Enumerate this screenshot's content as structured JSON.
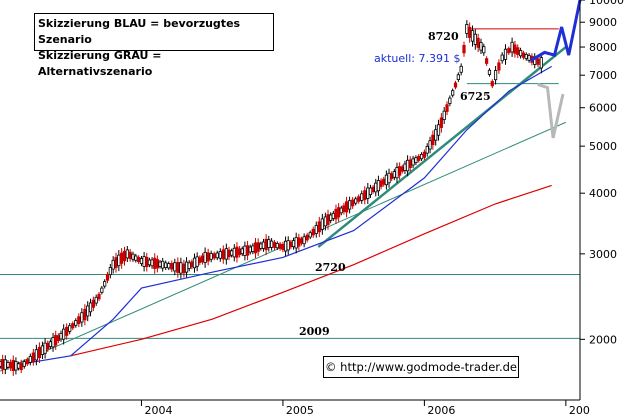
{
  "legend": {
    "line1": "Skizzierung BLAU = bevorzugtes Szenario",
    "line2": "Skizzierung GRAU = Alternativszenario"
  },
  "credit": "© http://www.godmode-trader.de",
  "colors": {
    "price": "#000000",
    "down_candle": "#cc0000",
    "ma_red": "#dd0000",
    "ma_blue": "#1e2fd6",
    "trend_green": "#2e8b7a",
    "scenario_blue": "#1e2fd6",
    "scenario_gray": "#b8b8b8",
    "resistance_red": "#cc0000"
  },
  "chart_data": {
    "type": "candlestick",
    "y_scale": "log",
    "ylim": [
      1500,
      10000
    ],
    "y_ticks": [
      2000,
      3000,
      4000,
      5000,
      6000,
      7000,
      8000,
      9000,
      10000
    ],
    "y_tick_labels": [
      "2000",
      "3000",
      "4000",
      "5000",
      "6000",
      "7000",
      "8000",
      "9000",
      "10000"
    ],
    "x_tick_labels": [
      "2004",
      "2005",
      "2006",
      "200"
    ],
    "price_points": [
      {
        "t": 2003.0,
        "v": 1780
      },
      {
        "t": 2003.15,
        "v": 1760
      },
      {
        "t": 2003.3,
        "v": 1900
      },
      {
        "t": 2003.45,
        "v": 2050
      },
      {
        "t": 2003.6,
        "v": 2250
      },
      {
        "t": 2003.7,
        "v": 2450
      },
      {
        "t": 2003.8,
        "v": 2850
      },
      {
        "t": 2003.9,
        "v": 3000
      },
      {
        "t": 2004.0,
        "v": 2900
      },
      {
        "t": 2004.15,
        "v": 2850
      },
      {
        "t": 2004.3,
        "v": 2800
      },
      {
        "t": 2004.45,
        "v": 2950
      },
      {
        "t": 2004.6,
        "v": 3000
      },
      {
        "t": 2004.75,
        "v": 3050
      },
      {
        "t": 2004.9,
        "v": 3150
      },
      {
        "t": 2005.0,
        "v": 3100
      },
      {
        "t": 2005.15,
        "v": 3200
      },
      {
        "t": 2005.3,
        "v": 3500
      },
      {
        "t": 2005.45,
        "v": 3750
      },
      {
        "t": 2005.6,
        "v": 4000
      },
      {
        "t": 2005.75,
        "v": 4300
      },
      {
        "t": 2005.9,
        "v": 4600
      },
      {
        "t": 2006.0,
        "v": 4800
      },
      {
        "t": 2006.1,
        "v": 5400
      },
      {
        "t": 2006.18,
        "v": 6200
      },
      {
        "t": 2006.26,
        "v": 7200
      },
      {
        "t": 2006.3,
        "v": 8720
      },
      {
        "t": 2006.36,
        "v": 8300
      },
      {
        "t": 2006.42,
        "v": 7900
      },
      {
        "t": 2006.48,
        "v": 6725
      },
      {
        "t": 2006.55,
        "v": 7600
      },
      {
        "t": 2006.62,
        "v": 8000
      },
      {
        "t": 2006.7,
        "v": 7700
      },
      {
        "t": 2006.78,
        "v": 7500
      },
      {
        "t": 2006.85,
        "v": 7391
      }
    ],
    "ma_red_points": [
      {
        "t": 2003.5,
        "v": 1850
      },
      {
        "t": 2004.0,
        "v": 2000
      },
      {
        "t": 2004.5,
        "v": 2200
      },
      {
        "t": 2005.0,
        "v": 2500
      },
      {
        "t": 2005.5,
        "v": 2850
      },
      {
        "t": 2006.0,
        "v": 3300
      },
      {
        "t": 2006.5,
        "v": 3800
      },
      {
        "t": 2006.9,
        "v": 4150
      }
    ],
    "ma_blue_points": [
      {
        "t": 2003.0,
        "v": 1750
      },
      {
        "t": 2003.5,
        "v": 1850
      },
      {
        "t": 2003.8,
        "v": 2200
      },
      {
        "t": 2004.0,
        "v": 2550
      },
      {
        "t": 2004.5,
        "v": 2750
      },
      {
        "t": 2005.0,
        "v": 2950
      },
      {
        "t": 2005.5,
        "v": 3350
      },
      {
        "t": 2006.0,
        "v": 4300
      },
      {
        "t": 2006.3,
        "v": 5400
      },
      {
        "t": 2006.6,
        "v": 6500
      },
      {
        "t": 2006.9,
        "v": 7300
      }
    ],
    "annotations": {
      "high_label": "8720",
      "low_label": "6725",
      "current_label": "aktuell: 7.391 $",
      "support_upper_label": "2720",
      "support_lower_label": "2009"
    },
    "horizontal_lines": [
      {
        "label": "2720",
        "value": 2720,
        "color": "#2e8b7a"
      },
      {
        "label": "2009",
        "value": 2009,
        "color": "#2e8b7a"
      },
      {
        "label": "8720",
        "value": 8720,
        "color": "#cc0000"
      },
      {
        "label": "6725",
        "value": 6725,
        "color": "#2e8b7a"
      }
    ],
    "trendlines": [
      {
        "from": {
          "t": 2003.0,
          "v": 1720
        },
        "to": {
          "t": 2007.0,
          "v": 5600
        },
        "color": "#2e8b7a"
      },
      {
        "from": {
          "t": 2005.25,
          "v": 3100
        },
        "to": {
          "t": 2007.0,
          "v": 8000
        },
        "color": "#2e8b7a"
      }
    ],
    "scenario_blue": [
      {
        "t": 2006.75,
        "v": 7500
      },
      {
        "t": 2006.85,
        "v": 7800
      },
      {
        "t": 2006.92,
        "v": 7700
      },
      {
        "t": 2006.97,
        "v": 8800
      },
      {
        "t": 2007.02,
        "v": 7700
      },
      {
        "t": 2007.1,
        "v": 10000
      }
    ],
    "scenario_gray": [
      {
        "t": 2006.8,
        "v": 6700
      },
      {
        "t": 2006.87,
        "v": 6600
      },
      {
        "t": 2006.91,
        "v": 5200
      },
      {
        "t": 2006.98,
        "v": 6400
      }
    ]
  }
}
